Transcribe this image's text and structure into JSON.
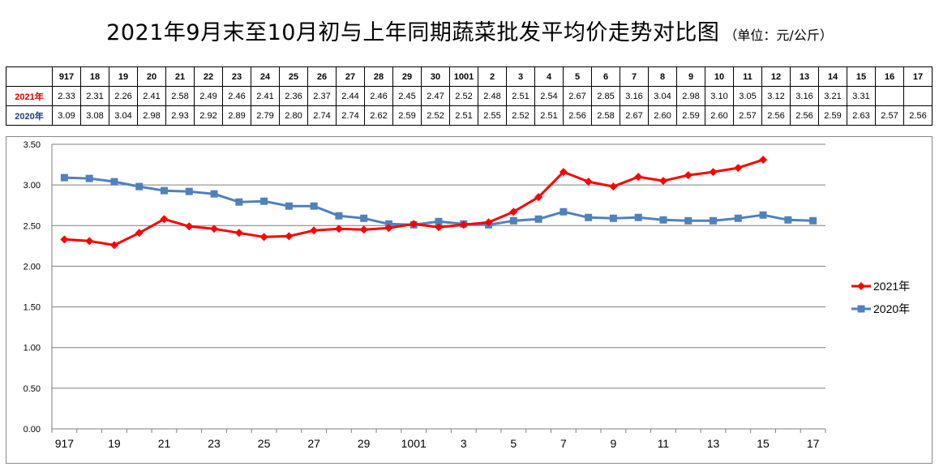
{
  "title": "2021年9月末至10月初与上年同期蔬菜批发平均价走势对比图",
  "unit": "（单位：元/公斤）",
  "table": {
    "header": [
      "917",
      "18",
      "19",
      "20",
      "21",
      "22",
      "23",
      "24",
      "25",
      "26",
      "27",
      "28",
      "29",
      "30",
      "1001",
      "2",
      "3",
      "4",
      "5",
      "6",
      "7",
      "8",
      "9",
      "10",
      "11",
      "12",
      "13",
      "14",
      "15",
      "16",
      "17"
    ],
    "rows": [
      {
        "label": "2021年",
        "values": [
          "2.33",
          "2.31",
          "2.26",
          "2.41",
          "2.58",
          "2.49",
          "2.46",
          "2.41",
          "2.36",
          "2.37",
          "2.44",
          "2.46",
          "2.45",
          "2.47",
          "2.52",
          "2.48",
          "2.51",
          "2.54",
          "2.67",
          "2.85",
          "3.16",
          "3.04",
          "2.98",
          "3.10",
          "3.05",
          "3.12",
          "3.16",
          "3.21",
          "3.31",
          "",
          ""
        ]
      },
      {
        "label": "2020年",
        "values": [
          "3.09",
          "3.08",
          "3.04",
          "2.98",
          "2.93",
          "2.92",
          "2.89",
          "2.79",
          "2.80",
          "2.74",
          "2.74",
          "2.62",
          "2.59",
          "2.52",
          "2.51",
          "2.55",
          "2.52",
          "2.51",
          "2.56",
          "2.58",
          "2.67",
          "2.60",
          "2.59",
          "2.60",
          "2.57",
          "2.56",
          "2.56",
          "2.59",
          "2.63",
          "2.57",
          "2.56"
        ]
      }
    ]
  },
  "chart_data": {
    "type": "line",
    "x": [
      "917",
      "18",
      "19",
      "20",
      "21",
      "22",
      "23",
      "24",
      "25",
      "26",
      "27",
      "28",
      "29",
      "30",
      "1001",
      "2",
      "3",
      "4",
      "5",
      "6",
      "7",
      "8",
      "9",
      "10",
      "11",
      "12",
      "13",
      "14",
      "15",
      "16",
      "17"
    ],
    "x_tick_labels": [
      "917",
      "19",
      "21",
      "23",
      "25",
      "27",
      "29",
      "1001",
      "3",
      "5",
      "7",
      "9",
      "11",
      "13",
      "15",
      "17"
    ],
    "ylim": [
      0,
      3.5
    ],
    "y_ticks": [
      "0.00",
      "0.50",
      "1.00",
      "1.50",
      "2.00",
      "2.50",
      "3.00",
      "3.50"
    ],
    "grid": true,
    "legend_position": "right",
    "series": [
      {
        "name": "2021年",
        "color": "#ff0000",
        "marker": "diamond",
        "values": [
          2.33,
          2.31,
          2.26,
          2.41,
          2.58,
          2.49,
          2.46,
          2.41,
          2.36,
          2.37,
          2.44,
          2.46,
          2.45,
          2.47,
          2.52,
          2.48,
          2.51,
          2.54,
          2.67,
          2.85,
          3.16,
          3.04,
          2.98,
          3.1,
          3.05,
          3.12,
          3.16,
          3.21,
          3.31,
          null,
          null
        ]
      },
      {
        "name": "2020年",
        "color": "#4f81bd",
        "marker": "square",
        "values": [
          3.09,
          3.08,
          3.04,
          2.98,
          2.93,
          2.92,
          2.89,
          2.79,
          2.8,
          2.74,
          2.74,
          2.62,
          2.59,
          2.52,
          2.51,
          2.55,
          2.52,
          2.51,
          2.56,
          2.58,
          2.67,
          2.6,
          2.59,
          2.6,
          2.57,
          2.56,
          2.56,
          2.59,
          2.63,
          2.57,
          2.56
        ]
      }
    ]
  }
}
